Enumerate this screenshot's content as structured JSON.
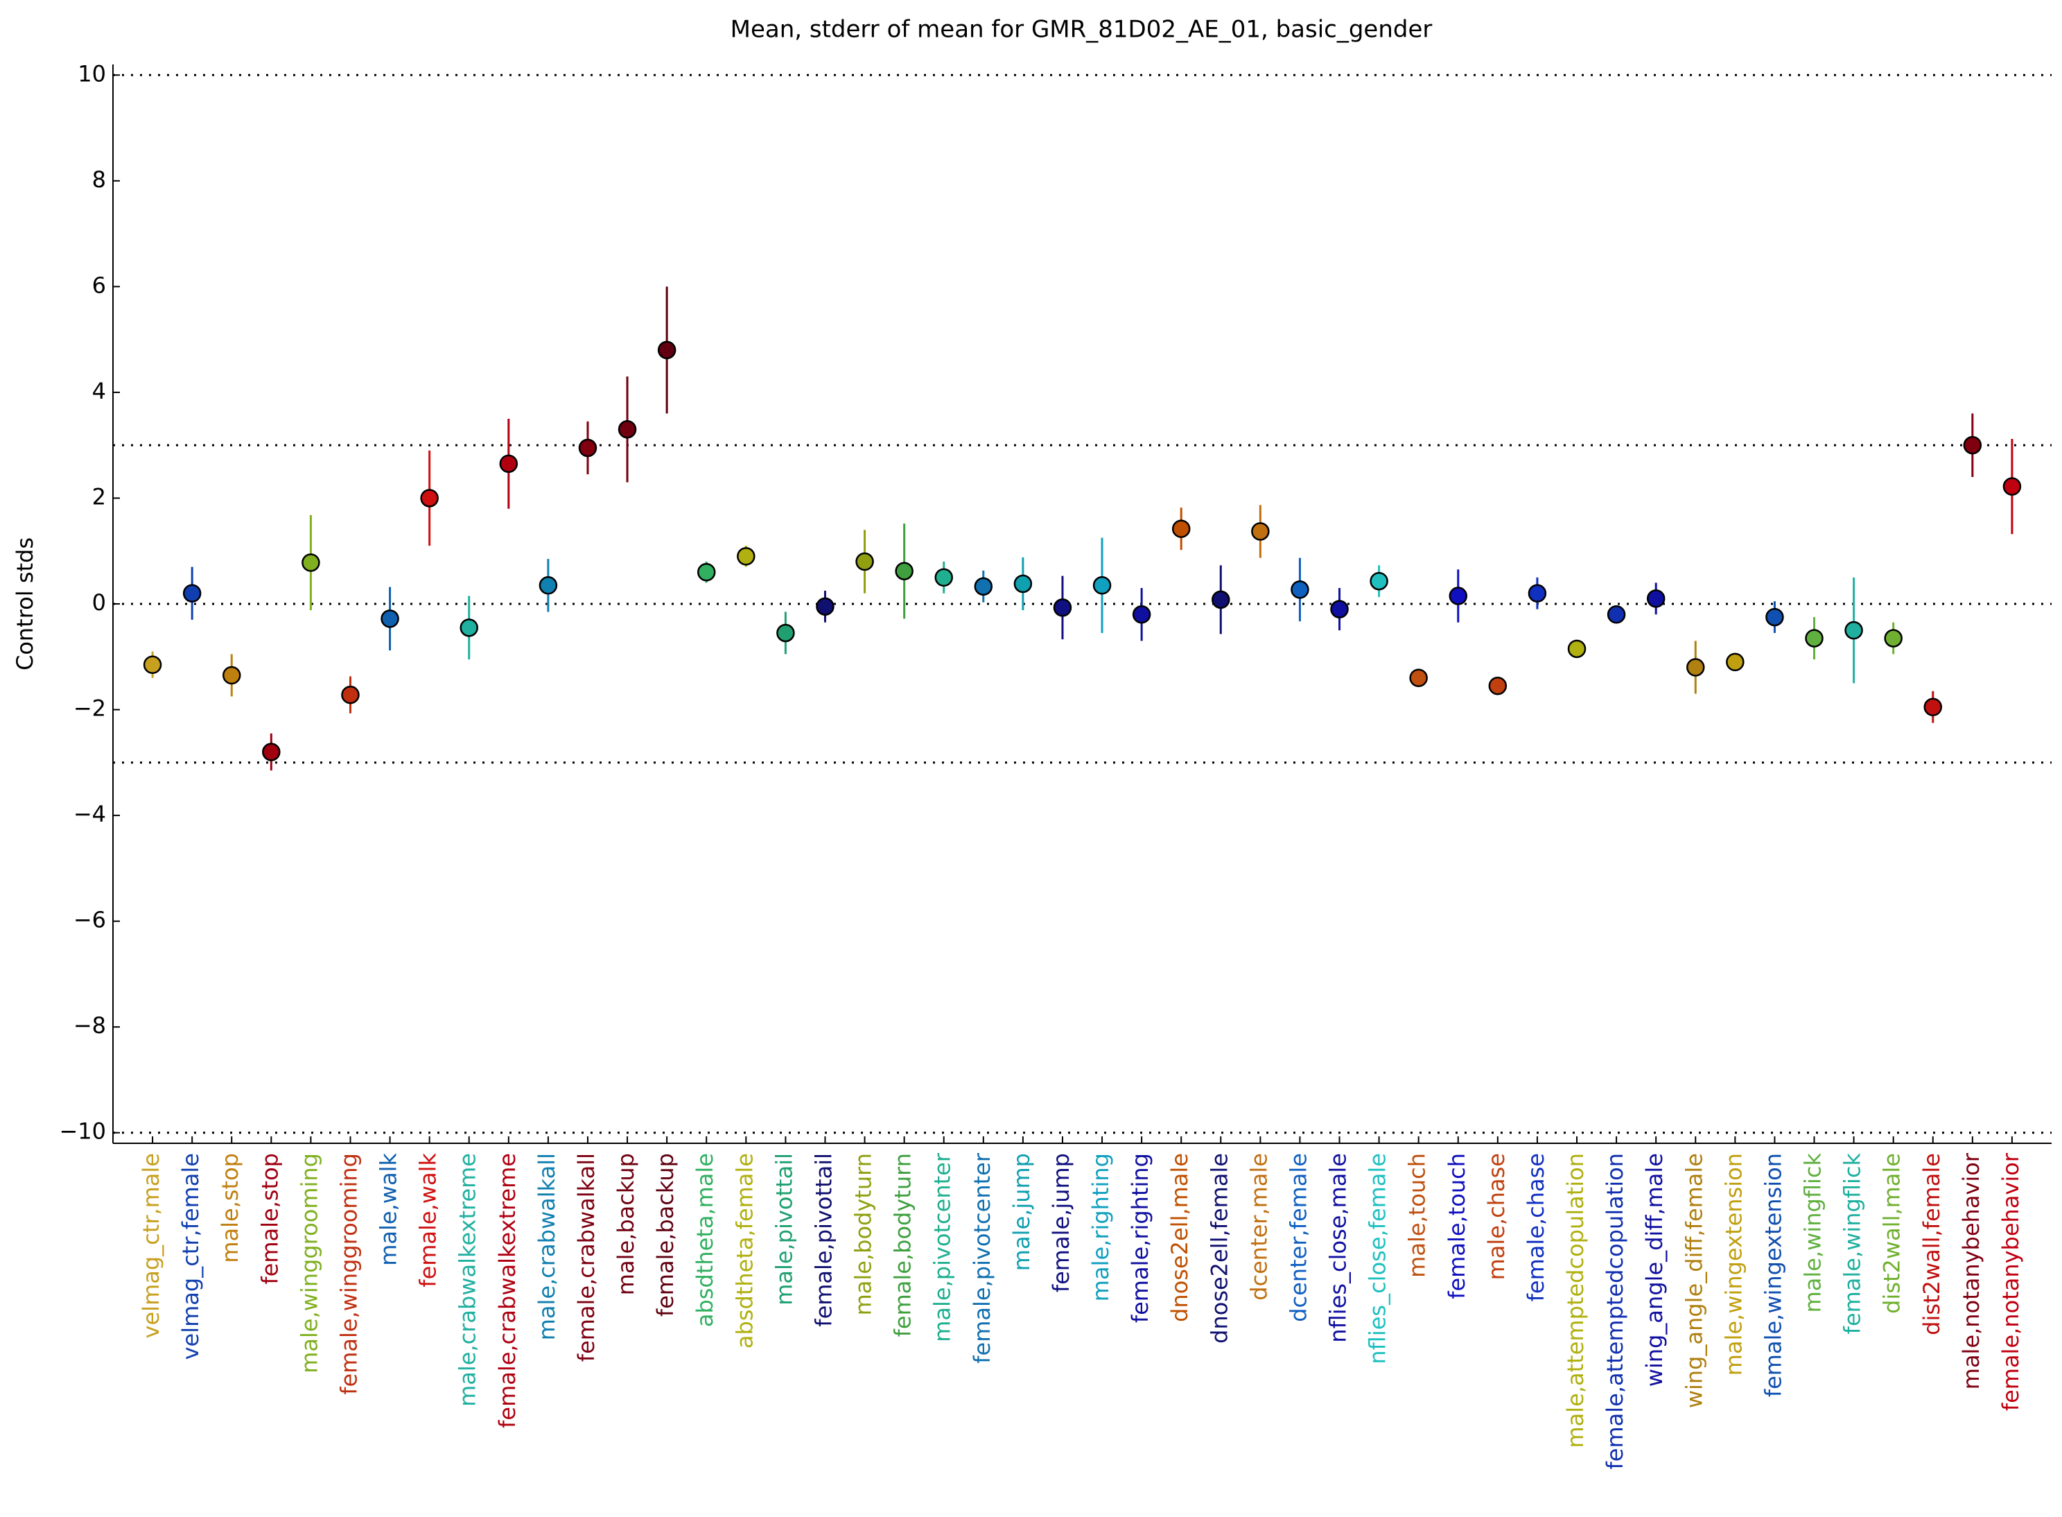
{
  "chart_data": {
    "type": "errorbar",
    "title": "Mean, stderr of mean for GMR_81D02_AE_01, basic_gender",
    "y_label": "Control stds",
    "categories": [
      "velmag_ctr,male",
      "velmag_ctr,female",
      "male,stop",
      "female,stop",
      "male,winggrooming",
      "female,winggrooming",
      "male,walk",
      "female,walk",
      "male,crabwalkextreme",
      "female,crabwalkextreme",
      "male,crabwalkall",
      "female,crabwalkall",
      "male,backup",
      "female,backup",
      "absdtheta,male",
      "absdtheta,female",
      "male,pivottail",
      "female,pivottail",
      "male,bodyturn",
      "female,bodyturn",
      "male,pivotcenter",
      "female,pivotcenter",
      "male,jump",
      "female,jump",
      "male,righting",
      "female,righting",
      "dnose2ell,male",
      "dnose2ell,female",
      "dcenter,male",
      "dcenter,female",
      "nflies_close,male",
      "nflies_close,female",
      "male,touch",
      "female,touch",
      "male,chase",
      "female,chase",
      "male,attemptedcopulation",
      "female,attemptedcopulation",
      "wing_angle_diff,male",
      "wing_angle_diff,female",
      "male,wingextension",
      "female,wingextension",
      "male,wingflick",
      "female,wingflick",
      "dist2wall,male",
      "dist2wall,female",
      "male,notanybehavior",
      "female,notanybehavior"
    ],
    "values": [
      -1.15,
      0.2,
      -1.35,
      -2.8,
      0.78,
      -1.72,
      -0.28,
      2.0,
      -0.45,
      2.65,
      0.35,
      2.95,
      3.3,
      4.8,
      0.6,
      0.9,
      -0.55,
      -0.05,
      0.8,
      0.62,
      0.5,
      0.33,
      0.38,
      -0.07,
      0.35,
      -0.2,
      1.42,
      0.08,
      1.37,
      0.27,
      -0.1,
      0.43,
      -1.4,
      0.15,
      -1.55,
      0.2,
      -0.85,
      -0.2,
      0.1,
      -1.2,
      -1.1,
      -0.25,
      -0.65,
      -0.5,
      -0.65,
      -1.95,
      3.0,
      2.22
    ],
    "errors": [
      0.25,
      0.5,
      0.4,
      0.35,
      0.9,
      0.35,
      0.6,
      0.9,
      0.6,
      0.85,
      0.5,
      0.5,
      1.0,
      1.2,
      0.2,
      0.2,
      0.4,
      0.3,
      0.6,
      0.9,
      0.3,
      0.3,
      0.5,
      0.6,
      0.9,
      0.5,
      0.4,
      0.65,
      0.5,
      0.6,
      0.4,
      0.3,
      0.1,
      0.5,
      0.1,
      0.3,
      0.1,
      0.1,
      0.3,
      0.5,
      0.1,
      0.3,
      0.4,
      1.0,
      0.3,
      0.3,
      0.6,
      0.9
    ],
    "colors": [
      "#c8a020",
      "#1040b0",
      "#c08010",
      "#a00010",
      "#80b020",
      "#c03010",
      "#1060b0",
      "#d01010",
      "#20b0a0",
      "#b00010",
      "#1080b0",
      "#800010",
      "#700010",
      "#600010",
      "#30b060",
      "#b0b010",
      "#20a070",
      "#101070",
      "#90a010",
      "#40a040",
      "#20b090",
      "#1070b0",
      "#10a0b0",
      "#101080",
      "#10a0c0",
      "#1010a0",
      "#c05000",
      "#101070",
      "#c07010",
      "#1060c0",
      "#1010a0",
      "#20c0c0",
      "#c05010",
      "#1010c0",
      "#c04010",
      "#1030c0",
      "#b0b010",
      "#1030b0",
      "#1010a0",
      "#b08010",
      "#c0a010",
      "#1050b0",
      "#60b040",
      "#20b0a0",
      "#70b030",
      "#c01010",
      "#800010",
      "#c00010"
    ],
    "ylim": [
      -10.2,
      10.2
    ],
    "yticks": [
      {
        "value": -10,
        "label": "−10"
      },
      {
        "value": -8,
        "label": "−8"
      },
      {
        "value": -6,
        "label": "−6"
      },
      {
        "value": -4,
        "label": "−4"
      },
      {
        "value": -2,
        "label": "−2"
      },
      0,
      2,
      4,
      6,
      8,
      10
    ],
    "hlines": [
      -10,
      -3,
      0,
      3,
      10
    ]
  }
}
